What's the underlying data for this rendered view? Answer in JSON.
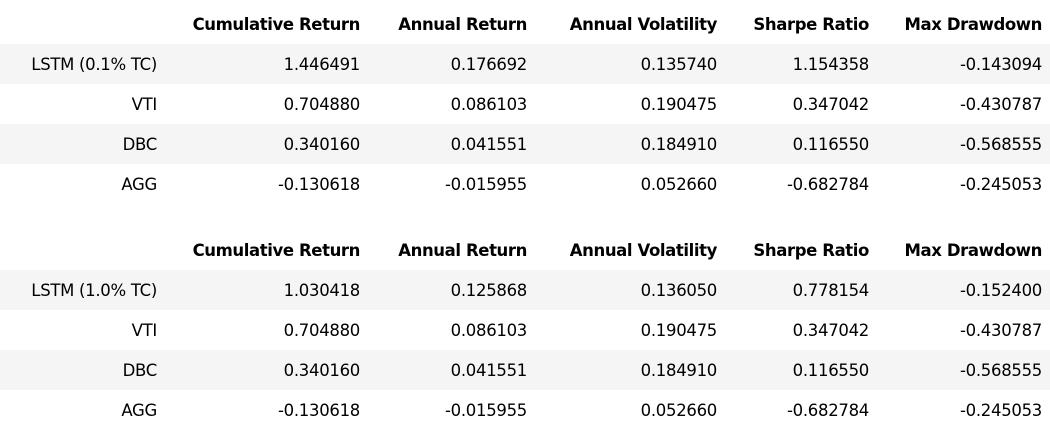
{
  "tables": [
    {
      "columns": [
        "",
        "Cumulative Return",
        "Annual Return",
        "Annual Volatility",
        "Sharpe Ratio",
        "Max Drawdown"
      ],
      "rows": [
        {
          "index": "LSTM (0.1% TC)",
          "values": [
            "1.446491",
            "0.176692",
            "0.135740",
            "1.154358",
            "-0.143094"
          ]
        },
        {
          "index": "VTI",
          "values": [
            "0.704880",
            "0.086103",
            "0.190475",
            "0.347042",
            "-0.430787"
          ]
        },
        {
          "index": "DBC",
          "values": [
            "0.340160",
            "0.041551",
            "0.184910",
            "0.116550",
            "-0.568555"
          ]
        },
        {
          "index": "AGG",
          "values": [
            "-0.130618",
            "-0.015955",
            "0.052660",
            "-0.682784",
            "-0.245053"
          ]
        }
      ]
    },
    {
      "columns": [
        "",
        "Cumulative Return",
        "Annual Return",
        "Annual Volatility",
        "Sharpe Ratio",
        "Max Drawdown"
      ],
      "rows": [
        {
          "index": "LSTM (1.0% TC)",
          "values": [
            "1.030418",
            "0.125868",
            "0.136050",
            "0.778154",
            "-0.152400"
          ]
        },
        {
          "index": "VTI",
          "values": [
            "0.704880",
            "0.086103",
            "0.190475",
            "0.347042",
            "-0.430787"
          ]
        },
        {
          "index": "DBC",
          "values": [
            "0.340160",
            "0.041551",
            "0.184910",
            "0.116550",
            "-0.568555"
          ]
        },
        {
          "index": "AGG",
          "values": [
            "-0.130618",
            "-0.015955",
            "0.052660",
            "-0.682784",
            "-0.245053"
          ]
        }
      ]
    }
  ],
  "colors": {
    "stripe_background": "#f5f5f5",
    "row_background": "#ffffff",
    "text": "#000000"
  }
}
